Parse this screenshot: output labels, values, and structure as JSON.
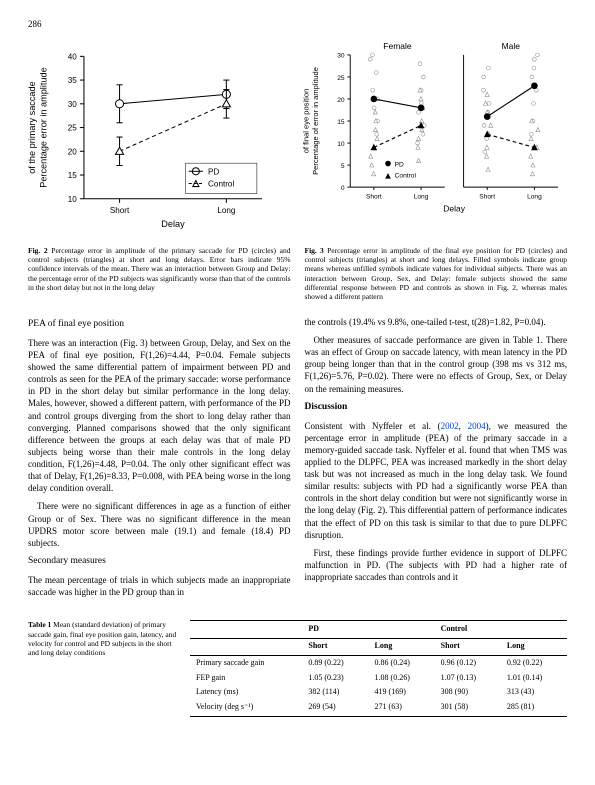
{
  "page_number": "286",
  "fig2": {
    "type": "line",
    "title": "",
    "xlabel": "Delay",
    "ylabel": "Percentage error in amplitude\\nof the primary saccade",
    "ylim": [
      10,
      40
    ],
    "yticks": [
      10,
      15,
      20,
      25,
      30,
      35,
      40
    ],
    "xticks": [
      "Short",
      "Long"
    ],
    "series": [
      {
        "name": "PD",
        "marker": "circle",
        "color": "#000000",
        "dash": "",
        "values": [
          30,
          32
        ]
      },
      {
        "name": "Control",
        "marker": "triangle",
        "color": "#000000",
        "dash": "4,3",
        "values": [
          20,
          30
        ]
      }
    ],
    "errorbar_halflen": [
      4,
      3,
      3,
      3
    ],
    "caption_label": "Fig. 2",
    "caption": "Percentage error in amplitude of the primary saccade for PD (circles) and control subjects (triangles) at short and long delays. Error bars indicate 95% confidence intervals of the mean. There was an interaction between Group and Delay: the percentage error of the PD subjects was significantly worse than that of the controls in the short delay but not in the long delay"
  },
  "fig3": {
    "type": "line-pair",
    "panels": [
      "Female",
      "Male"
    ],
    "xlabel": "Delay",
    "ylabel": "Percentage of error in amplitude\\nof final eye position",
    "ylim": [
      0,
      30
    ],
    "yticks": [
      0,
      5,
      10,
      15,
      20,
      25,
      30
    ],
    "xticks": [
      "Short",
      "Long"
    ],
    "series_female": {
      "pd_mean": [
        20,
        18
      ],
      "control_mean": [
        9,
        14
      ],
      "pd_points": [
        [
          12,
          15,
          18,
          20,
          22,
          26,
          29,
          30
        ],
        [
          10,
          12,
          14,
          17,
          19,
          22,
          25,
          28
        ]
      ],
      "control_points": [
        [
          3,
          5,
          7,
          9,
          11,
          13,
          15,
          17
        ],
        [
          6,
          9,
          11,
          13,
          15,
          18,
          20,
          22
        ]
      ]
    },
    "series_male": {
      "pd_mean": [
        16,
        23
      ],
      "control_mean": [
        12,
        9
      ],
      "pd_points": [
        [
          8,
          11,
          14,
          17,
          19,
          22,
          25,
          27
        ],
        [
          12,
          15,
          19,
          22,
          25,
          27,
          29,
          30
        ]
      ],
      "control_points": [
        [
          4,
          7,
          9,
          12,
          14,
          17,
          19,
          21
        ],
        [
          3,
          5,
          7,
          9,
          11,
          13,
          15
        ]
      ]
    },
    "colors": {
      "pd": "#000000",
      "control": "#000000",
      "point_fill_open": "#ffffff"
    },
    "legend": [
      "PD",
      "Control"
    ],
    "caption_label": "Fig. 3",
    "caption": "Percentage error in amplitude of the final eye position for PD (circles) and control subjects (triangles) at short and long delays. Filled symbols indicate group means whereas unfilled symbols indicate values for individual subjects. There was an interaction between Group, Sex, and Delay: female subjects showed the same differential response between PD and controls as shown in Fig. 2, whereas males showed a different pattern"
  },
  "left_col": {
    "heading1": "PEA of final eye position",
    "p1": "There was an interaction (Fig. 3) between Group, Delay, and Sex on the PEA of final eye position, F(1,26)=4.44, P=0.04. Female subjects showed the same differential pattern of impairment between PD and controls as seen for the PEA of the primary saccade: worse performance in PD in the short delay but similar performance in the long delay. Males, however, showed a different pattern, with performance of the PD and control groups diverging from the short to long delay rather than converging. Planned comparisons showed that the only significant difference between the groups at each delay was that of male PD subjects being worse than their male controls in the long delay condition, F(1,26)=4.48, P=0.04. The only other significant effect was that of Delay, F(1,26)=8.33, P=0.008, with PEA being worse in the long delay condition overall.",
    "p2": "There were no significant differences in age as a function of either Group or of Sex. There was no significant difference in the mean UPDRS motor score between male (19.1) and female (18.4) PD subjects.",
    "heading2": "Secondary measures",
    "p3": "The mean percentage of trials in which subjects made an inappropriate saccade was higher in the PD group than in"
  },
  "right_col": {
    "p1": "the controls (19.4% vs 9.8%, one-tailed t-test, t(28)=1.82, P=0.04).",
    "p2": "Other measures of saccade performance are given in Table 1. There was an effect of Group on saccade latency, with mean latency in the PD group being longer than that in the control group (398 ms vs 312 ms, F(1,26)=5.76, P=0.02). There were no effects of Group, Sex, or Delay on the remaining measures.",
    "heading1": "Discussion",
    "p3a": "Consistent with Nyffeler et al. (",
    "ref1": "2002",
    "p3b": ", ",
    "ref2": "2004",
    "p3c": "), we measured the percentage error in amplitude (PEA) of the primary saccade in a memory-guided saccade task. Nyffeler et al. found that when TMS was applied to the DLPFC, PEA was increased markedly in the short delay task but was not increased as much in the long delay task. We found similar results: subjects with PD had a significantly worse PEA than controls in the short delay condition but were not significantly worse in the long delay (Fig. 2). This differential pattern of performance indicates that the effect of PD on this task is similar to that due to pure DLPFC disruption.",
    "p4": "First, these findings provide further evidence in support of DLPFC malfunction in PD. (The subjects with PD had a higher rate of inappropriate saccades than controls and it"
  },
  "table": {
    "caption_label": "Table 1",
    "caption": "Mean (standard deviation) of primary saccade gain, final eye position gain, latency, and velocity for control and PD subjects in the short and long delay conditions",
    "group_headers": [
      "",
      "PD",
      "",
      "Control",
      ""
    ],
    "sub_headers": [
      "",
      "Short",
      "Long",
      "Short",
      "Long"
    ],
    "rows": [
      [
        "Primary saccade gain",
        "0.89 (0.22)",
        "0.86 (0.24)",
        "0.96 (0.12)",
        "0.92 (0.22)"
      ],
      [
        "FEP gain",
        "1.05 (0.23)",
        "1.08 (0.26)",
        "1.07 (0.13)",
        "1.01 (0.14)"
      ],
      [
        "Latency (ms)",
        "382 (114)",
        "419 (169)",
        "308 (90)",
        "313 (43)"
      ],
      [
        "Velocity (deg s⁻¹)",
        "269 (54)",
        "271 (63)",
        "301 (58)",
        "285 (81)"
      ]
    ]
  }
}
